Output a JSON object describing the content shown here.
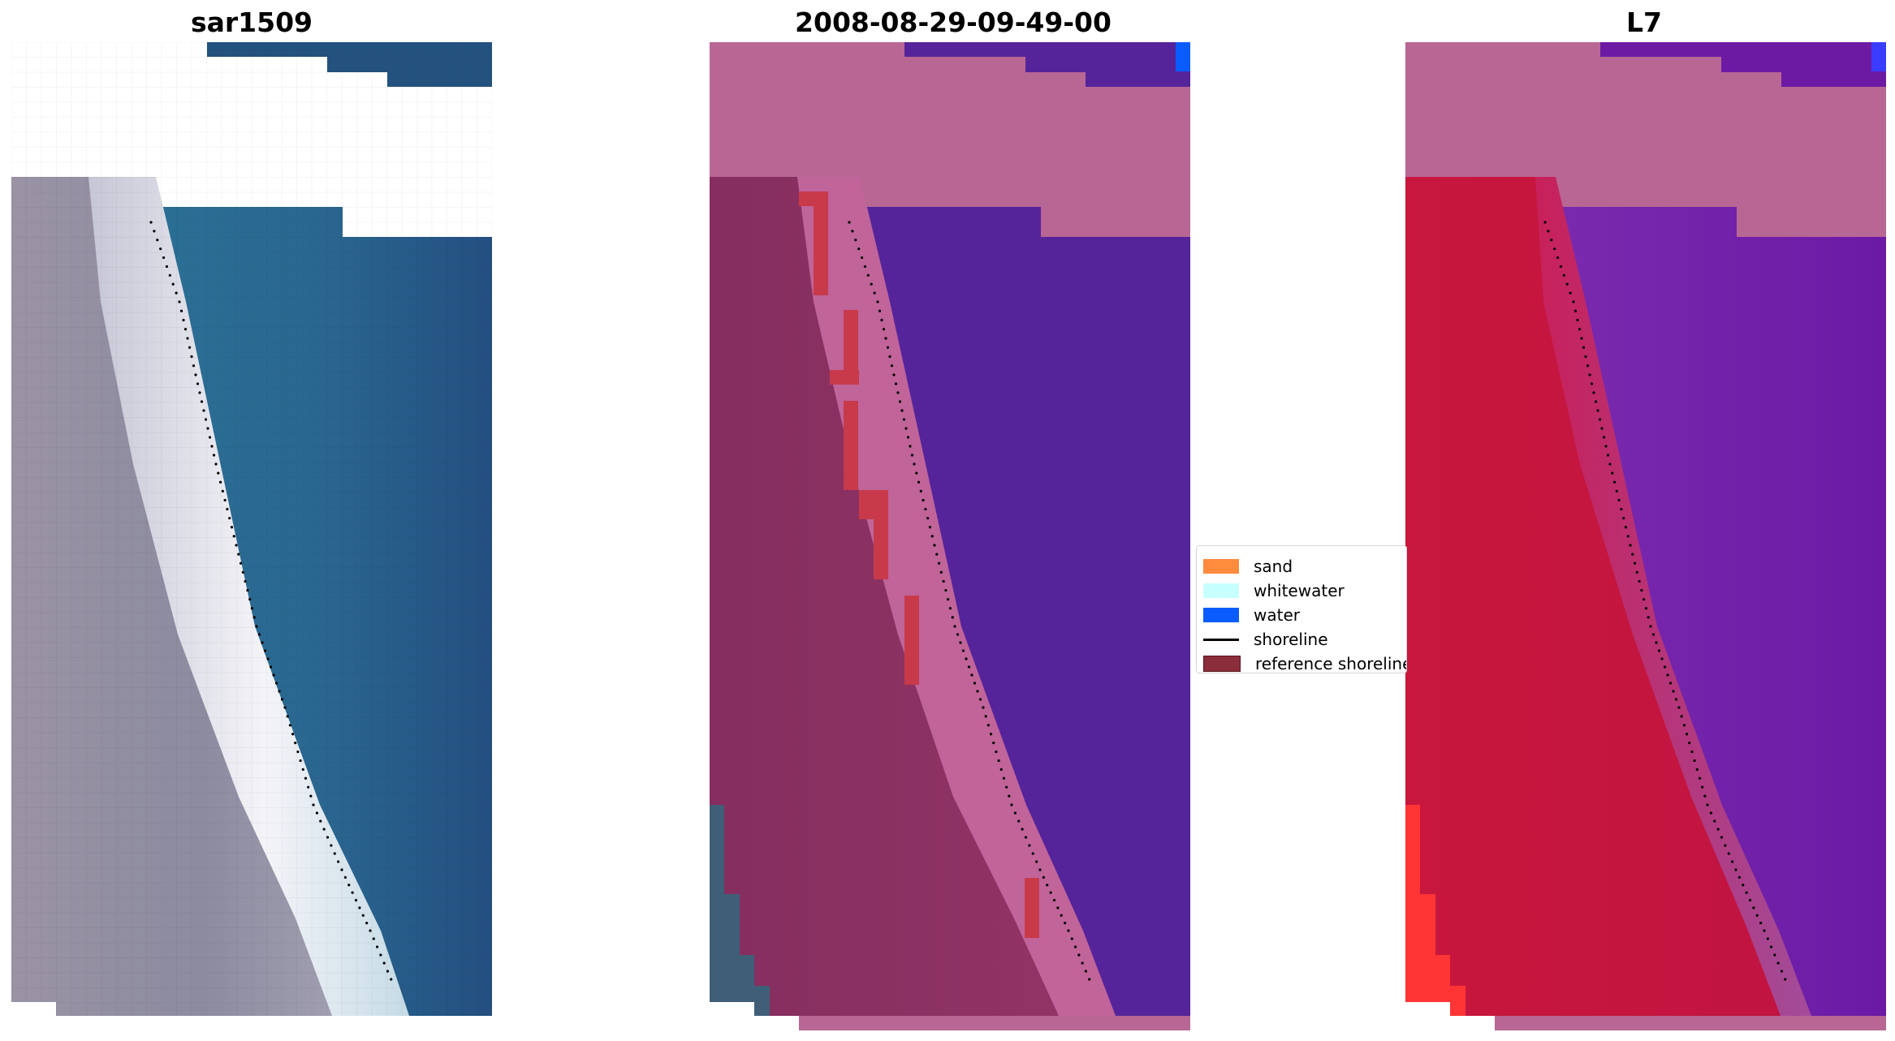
{
  "panels": [
    {
      "title": "sar1509"
    },
    {
      "title": "2008-08-29-09-49-00"
    },
    {
      "title": "L7"
    }
  ],
  "legend": {
    "entries": [
      {
        "label": "sand",
        "color": "#ff8c3c",
        "kind": "patch"
      },
      {
        "label": "whitewater",
        "color": "#c8ffff",
        "kind": "patch"
      },
      {
        "label": "water",
        "color": "#0a5cff",
        "kind": "patch"
      },
      {
        "label": "shoreline",
        "color": "#000000",
        "kind": "line"
      },
      {
        "label": "reference shoreline",
        "color": "#8b2d3a",
        "kind": "patch"
      }
    ]
  },
  "colors": {
    "rgb_water": "#245a8a",
    "rgb_sand": "#f2f2f6",
    "rgb_land": "#8f8fa0",
    "class_no_data": "#b86794",
    "class_water": "#55249a",
    "class_land": "#8a2f62",
    "class_beach": "#c0649a",
    "class_reference": "#c83a4a",
    "mndwi_land": "#c2123c",
    "mndwi_water": "#6c1aa4",
    "mndwi_no_data": "#b86794"
  }
}
